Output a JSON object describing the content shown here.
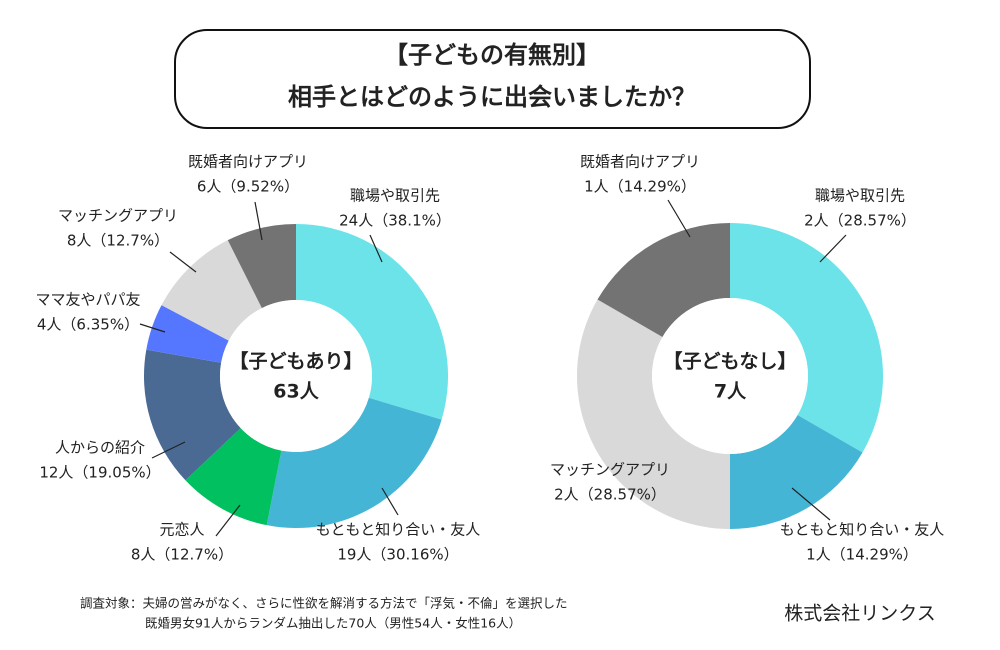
{
  "title": [
    "【子どもの有無別】",
    "相手とはどのように出会いましたか？"
  ],
  "chart_data": [
    {
      "type": "pie",
      "donut": true,
      "center_label": [
        "【子どもあり】",
        "63人"
      ],
      "categories": [
        "職場や取引先",
        "もともと知り合い・友人",
        "元恋人",
        "人からの紹介",
        "ママ友やパパ友",
        "マッチングアプリ",
        "既婚者向けアプリ"
      ],
      "values": [
        24,
        19,
        8,
        12,
        4,
        8,
        6
      ],
      "value_labels": [
        "24人（38.1%）",
        "19人（30.16%）",
        "8人（12.7%）",
        "12人（19.05%）",
        "4人（6.35%）",
        "8人（12.7%）",
        "6人（9.52%）"
      ],
      "colors": [
        "#6ce3e8",
        "#45b5d6",
        "#00c060",
        "#4a6a94",
        "#5577ff",
        "#d9d9d9",
        "#737373"
      ]
    },
    {
      "type": "pie",
      "donut": true,
      "center_label": [
        "【子どもなし】",
        "7人"
      ],
      "categories": [
        "職場や取引先",
        "もともと知り合い・友人",
        "マッチングアプリ",
        "既婚者向けアプリ"
      ],
      "values": [
        2,
        1,
        2,
        1
      ],
      "value_labels": [
        "2人（28.57%）",
        "1人（14.29%）",
        "2人（28.57%）",
        "1人（14.29%）"
      ],
      "colors": [
        "#6ce3e8",
        "#45b5d6",
        "#d9d9d9",
        "#737373"
      ]
    }
  ],
  "note": [
    "調査対象：夫婦の営みがなく、さらに性欲を解消する方法で「浮気・不倫」を選択した",
    "既婚男女91人からランダム抽出した70人（男性54人・女性16人）"
  ],
  "company": "株式会社リンクス"
}
